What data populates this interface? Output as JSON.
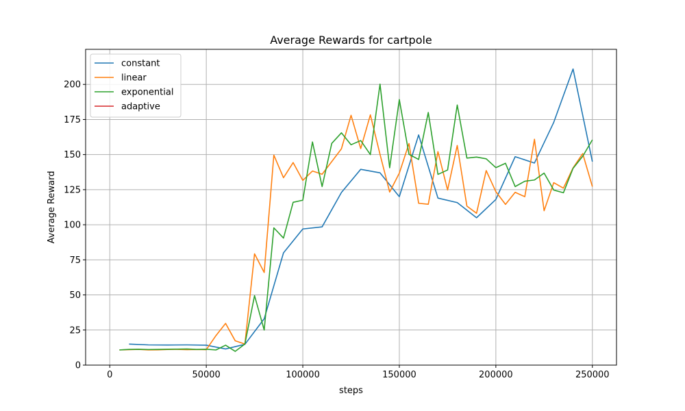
{
  "chart_data": {
    "type": "line",
    "title": "Average Rewards for cartpole",
    "xlabel": "steps",
    "ylabel": "Average Reward",
    "xlim": [
      -12500,
      262500
    ],
    "ylim": [
      0,
      225
    ],
    "xticks": [
      0,
      50000,
      100000,
      150000,
      200000,
      250000
    ],
    "yticks": [
      0,
      25,
      50,
      75,
      100,
      125,
      150,
      175,
      200
    ],
    "grid": true,
    "legend_position": "top-left",
    "series": [
      {
        "name": "constant",
        "color": "#1f77b4",
        "points": [
          [
            10000,
            15
          ],
          [
            20000,
            14.4
          ],
          [
            30000,
            14.3
          ],
          [
            40000,
            14.4
          ],
          [
            50000,
            14.2
          ],
          [
            60000,
            11.5
          ],
          [
            70000,
            14.8
          ],
          [
            80000,
            33
          ],
          [
            90000,
            80
          ],
          [
            100000,
            97
          ],
          [
            110000,
            98.5
          ],
          [
            120000,
            123
          ],
          [
            130000,
            139.5
          ],
          [
            140000,
            137
          ],
          [
            150000,
            120
          ],
          [
            160000,
            164
          ],
          [
            170000,
            119
          ],
          [
            180000,
            115.8
          ],
          [
            190000,
            105
          ],
          [
            200000,
            118
          ],
          [
            210000,
            148.5
          ],
          [
            220000,
            144
          ],
          [
            230000,
            173
          ],
          [
            240000,
            211
          ],
          [
            250000,
            145
          ]
        ]
      },
      {
        "name": "linear",
        "color": "#ff7f0e",
        "points": [
          [
            5000,
            10.8
          ],
          [
            10000,
            11
          ],
          [
            15000,
            11.2
          ],
          [
            20000,
            10.8
          ],
          [
            25000,
            10.9
          ],
          [
            30000,
            11.1
          ],
          [
            35000,
            11.2
          ],
          [
            40000,
            11
          ],
          [
            45000,
            11.1
          ],
          [
            50000,
            11
          ],
          [
            55000,
            21
          ],
          [
            60000,
            29.7
          ],
          [
            65000,
            17.3
          ],
          [
            70000,
            15
          ],
          [
            75000,
            79.3
          ],
          [
            80000,
            66
          ],
          [
            85000,
            149.6
          ],
          [
            90000,
            133.5
          ],
          [
            95000,
            144.3
          ],
          [
            100000,
            131.6
          ],
          [
            105000,
            138.3
          ],
          [
            110000,
            136
          ],
          [
            115000,
            145
          ],
          [
            120000,
            154.1
          ],
          [
            125000,
            178
          ],
          [
            130000,
            154.3
          ],
          [
            135000,
            178.3
          ],
          [
            140000,
            150.2
          ],
          [
            145000,
            123.3
          ],
          [
            150000,
            136.8
          ],
          [
            155000,
            157.9
          ],
          [
            160000,
            115.3
          ],
          [
            165000,
            114.6
          ],
          [
            170000,
            152.1
          ],
          [
            175000,
            124.8
          ],
          [
            180000,
            156.5
          ],
          [
            185000,
            113.3
          ],
          [
            190000,
            108.2
          ],
          [
            195000,
            138.6
          ],
          [
            200000,
            123.6
          ],
          [
            205000,
            114.5
          ],
          [
            210000,
            123.1
          ],
          [
            215000,
            120
          ],
          [
            220000,
            160.9
          ],
          [
            225000,
            110
          ],
          [
            230000,
            130
          ],
          [
            235000,
            126.1
          ],
          [
            240000,
            140.5
          ],
          [
            245000,
            150.7
          ],
          [
            250000,
            127.2
          ]
        ]
      },
      {
        "name": "exponential",
        "color": "#2ca02c",
        "points": [
          [
            5000,
            10.8
          ],
          [
            10000,
            11.2
          ],
          [
            15000,
            11.3
          ],
          [
            20000,
            11.1
          ],
          [
            25000,
            11.2
          ],
          [
            30000,
            11.3
          ],
          [
            35000,
            11.4
          ],
          [
            40000,
            11.5
          ],
          [
            45000,
            11.2
          ],
          [
            50000,
            11.3
          ],
          [
            55000,
            10.8
          ],
          [
            60000,
            14.2
          ],
          [
            65000,
            9.8
          ],
          [
            70000,
            15
          ],
          [
            75000,
            49.5
          ],
          [
            80000,
            25
          ],
          [
            85000,
            97.8
          ],
          [
            90000,
            90.5
          ],
          [
            95000,
            116
          ],
          [
            100000,
            117.5
          ],
          [
            105000,
            159
          ],
          [
            110000,
            127.2
          ],
          [
            115000,
            158
          ],
          [
            120000,
            165.5
          ],
          [
            125000,
            157
          ],
          [
            130000,
            160
          ],
          [
            135000,
            150
          ],
          [
            140000,
            200.2
          ],
          [
            145000,
            140.6
          ],
          [
            150000,
            189.2
          ],
          [
            155000,
            150.2
          ],
          [
            160000,
            146.5
          ],
          [
            165000,
            180
          ],
          [
            170000,
            135.9
          ],
          [
            175000,
            139
          ],
          [
            180000,
            185.3
          ],
          [
            185000,
            147.5
          ],
          [
            190000,
            148.2
          ],
          [
            195000,
            147
          ],
          [
            200000,
            140.7
          ],
          [
            205000,
            143.8
          ],
          [
            210000,
            127.2
          ],
          [
            215000,
            131
          ],
          [
            220000,
            131.9
          ],
          [
            225000,
            136.8
          ],
          [
            230000,
            124.7
          ],
          [
            235000,
            122.8
          ],
          [
            240000,
            140.2
          ],
          [
            245000,
            148.8
          ],
          [
            250000,
            160.5
          ]
        ]
      },
      {
        "name": "adaptive",
        "color": "#d62728",
        "points": []
      }
    ]
  }
}
